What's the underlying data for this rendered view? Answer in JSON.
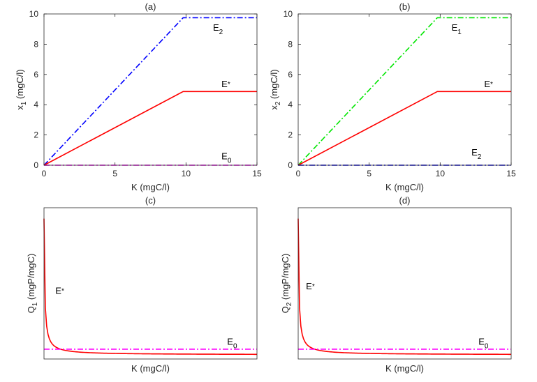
{
  "chart_data": [
    {
      "panel": "(a)",
      "type": "line",
      "title": "(a)",
      "xlabel": "K (mgC/l)",
      "ylabel": "x",
      "ylabel_sub": "1",
      "ylabel_unit": " (mgC/l)",
      "xlim": [
        0,
        15
      ],
      "ylim": [
        0,
        10
      ],
      "xticks": [
        0,
        5,
        10,
        15
      ],
      "yticks": [
        0,
        2,
        4,
        6,
        8,
        10
      ],
      "show_ticklabels": true,
      "series": [
        {
          "name": "E2",
          "color": "#0000ff",
          "style": "dashdot",
          "x": [
            0,
            9.8,
            15
          ],
          "y": [
            0,
            9.75,
            9.75
          ]
        },
        {
          "name": "E*",
          "color": "#ff0000",
          "style": "solid",
          "x": [
            0,
            9.8,
            15
          ],
          "y": [
            0,
            4.87,
            4.87
          ]
        },
        {
          "name": "E0",
          "color": "#ff00ff",
          "style": "dashdot",
          "x": [
            0,
            15
          ],
          "y": [
            0,
            0
          ]
        }
      ],
      "annotations": [
        {
          "main": "E",
          "sub": "2",
          "x": 11.9,
          "y": 8.9
        },
        {
          "main": "E",
          "sub": "*",
          "x": 12.5,
          "y": 5.15
        },
        {
          "main": "E",
          "sub": "0",
          "x": 12.5,
          "y": 0.4
        }
      ]
    },
    {
      "panel": "(b)",
      "type": "line",
      "title": "(b)",
      "xlabel": "K (mgC/l)",
      "ylabel": "x",
      "ylabel_sub": "2",
      "ylabel_unit": " (mgC/l)",
      "xlim": [
        0,
        15
      ],
      "ylim": [
        0,
        10
      ],
      "xticks": [
        0,
        5,
        10,
        15
      ],
      "yticks": [
        0,
        2,
        4,
        6,
        8,
        10
      ],
      "show_ticklabels": true,
      "series": [
        {
          "name": "E1",
          "color": "#00e600",
          "style": "dashdot",
          "x": [
            0,
            9.8,
            15
          ],
          "y": [
            0,
            9.75,
            9.75
          ]
        },
        {
          "name": "E*",
          "color": "#ff0000",
          "style": "solid",
          "x": [
            0,
            9.8,
            15
          ],
          "y": [
            0,
            4.87,
            4.87
          ]
        },
        {
          "name": "E2",
          "color": "#0000ff",
          "style": "dashdot",
          "x": [
            0,
            15
          ],
          "y": [
            0,
            0
          ]
        }
      ],
      "annotations": [
        {
          "main": "E",
          "sub": "1",
          "x": 10.8,
          "y": 8.9
        },
        {
          "main": "E",
          "sub": "*",
          "x": 13.1,
          "y": 5.15
        },
        {
          "main": "E",
          "sub": "2",
          "x": 12.2,
          "y": 0.65
        }
      ]
    },
    {
      "panel": "(c)",
      "type": "line",
      "title": "(c)",
      "xlabel": "K (mgC/l)",
      "ylabel": "Q",
      "ylabel_sub": "1",
      "ylabel_unit": " (mgP/mgC)",
      "xlim": [
        0,
        15
      ],
      "ylim": [
        0,
        10
      ],
      "xticks": [],
      "yticks": [],
      "show_ticklabels": false,
      "series": [
        {
          "name": "E*",
          "color": "#ff0000",
          "style": "solid",
          "curve": "decay",
          "x0": 0.05,
          "offset": 0.28,
          "scale": 0.45
        },
        {
          "name": "E0",
          "color": "#ff00ff",
          "style": "dashdot",
          "x": [
            0,
            15
          ],
          "y": [
            0.65,
            0.65
          ]
        }
      ],
      "annotations": [
        {
          "main": "E",
          "sub": "*",
          "x": 0.8,
          "y": 4.3
        },
        {
          "main": "E",
          "sub": "0",
          "x": 12.9,
          "y": 0.95
        }
      ]
    },
    {
      "panel": "(d)",
      "type": "line",
      "title": "(d)",
      "xlabel": "K (mgC/l)",
      "ylabel": "Q",
      "ylabel_sub": "2",
      "ylabel_unit": " (mgP/mgC)",
      "xlim": [
        0,
        15
      ],
      "ylim": [
        0,
        10
      ],
      "xticks": [],
      "yticks": [],
      "show_ticklabels": false,
      "series": [
        {
          "name": "E*",
          "color": "#ff0000",
          "style": "solid",
          "curve": "decay",
          "x0": 0.05,
          "offset": 0.28,
          "scale": 0.45
        },
        {
          "name": "E0",
          "color": "#ff00ff",
          "style": "dashdot",
          "x": [
            0,
            15
          ],
          "y": [
            0.65,
            0.65
          ]
        }
      ],
      "annotations": [
        {
          "main": "E",
          "sub": "*",
          "x": 0.55,
          "y": 4.6
        },
        {
          "main": "E",
          "sub": "0",
          "x": 12.7,
          "y": 0.95
        }
      ]
    }
  ]
}
